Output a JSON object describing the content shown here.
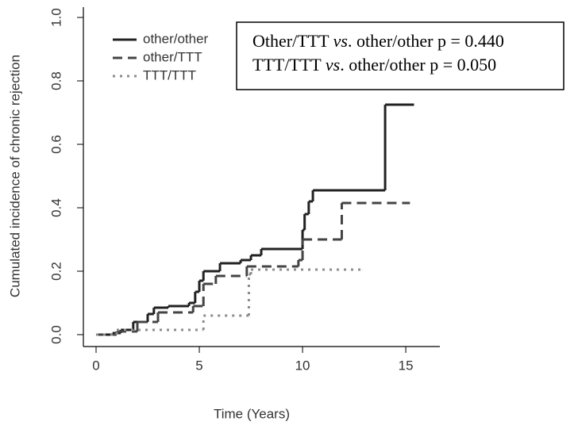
{
  "chart_data": {
    "type": "step",
    "xlabel": "Time (Years)",
    "ylabel": "Cumulated incidence of chronic rejection",
    "xlim": [
      -0.615,
      16.65
    ],
    "xticks": [
      0,
      5,
      10,
      15
    ],
    "ylim": [
      -0.0375,
      1.0325
    ],
    "yticks": [
      {
        "value": 0,
        "label": "0.0"
      },
      0.2,
      0.4,
      0.6,
      0.8,
      {
        "value": 1,
        "label": "1.0"
      }
    ],
    "legend": "upper left",
    "annotation": [
      [
        "Other/TTT ",
        "vs",
        ". other/other p = 0.440"
      ],
      [
        "TTT/TTT ",
        "vs",
        ". other/other p = 0.050"
      ]
    ],
    "series": [
      {
        "name": "other/other",
        "color": "#222222",
        "dash": "solid",
        "x": [
          0,
          0.8,
          1.2,
          1.8,
          2.5,
          2.8,
          3.5,
          4.5,
          4.8,
          5,
          5.2,
          5.5,
          6,
          7,
          7.5,
          8,
          10,
          10.1,
          10.3,
          10.5,
          14,
          15.4
        ],
        "values": [
          0,
          0.005,
          0.015,
          0.04,
          0.065,
          0.085,
          0.09,
          0.1,
          0.135,
          0.17,
          0.2,
          0.2,
          0.225,
          0.235,
          0.25,
          0.27,
          0.33,
          0.38,
          0.42,
          0.455,
          0.725,
          0.725
        ]
      },
      {
        "name": "other/TTT",
        "color": "#444444",
        "dash": "dashed",
        "x": [
          0,
          1,
          2,
          3,
          4.7,
          5.2,
          5.8,
          7.3,
          9.8,
          10,
          11.9,
          15.2
        ],
        "values": [
          0,
          0.01,
          0.04,
          0.07,
          0.09,
          0.16,
          0.185,
          0.215,
          0.235,
          0.3,
          0.415,
          0.415
        ]
      },
      {
        "name": "TTT/TTT",
        "color": "#8c8c8c",
        "dash": "dotted",
        "x": [
          0,
          1,
          5.2,
          7.4,
          7.5,
          12.9
        ],
        "values": [
          0,
          0.015,
          0.06,
          0.19,
          0.205,
          0.205
        ]
      }
    ]
  }
}
